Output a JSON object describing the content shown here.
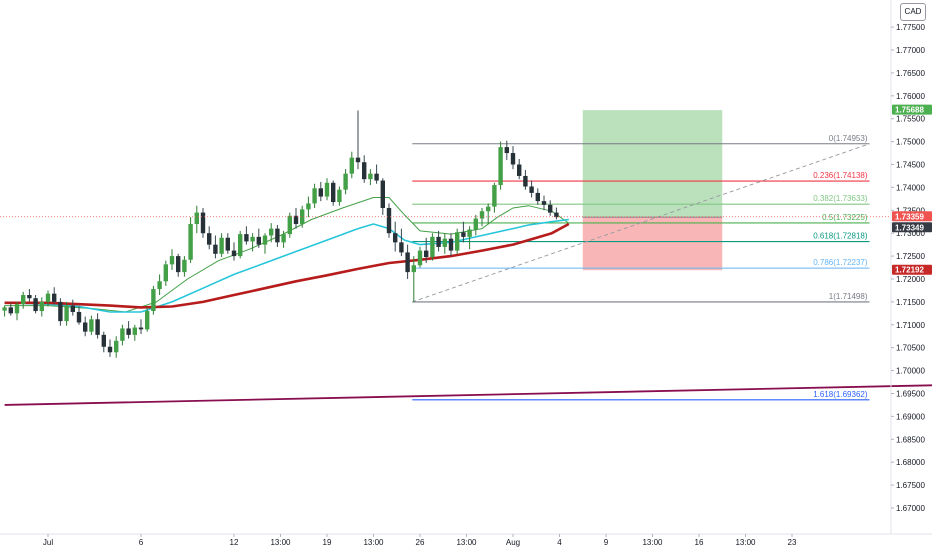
{
  "currency": "CAD",
  "price_tags": [
    {
      "label": "1.75688",
      "value": 1.75688,
      "color": "#4caf50"
    },
    {
      "label": "1.73359",
      "value": 1.73359,
      "color": "#ef5350"
    },
    {
      "label": "1.73349",
      "value": 1.73349,
      "color": "#363a45"
    },
    {
      "label": "1.72192",
      "value": 1.72192,
      "color": "#c62828"
    }
  ],
  "chart_data": {
    "type": "candlestick",
    "y_ticks": [
      "1.67000",
      "1.67500",
      "1.68000",
      "1.68500",
      "1.69000",
      "1.69500",
      "1.70000",
      "1.70500",
      "1.71000",
      "1.71500",
      "1.72000",
      "1.72500",
      "1.73000",
      "1.73500",
      "1.74000",
      "1.74500",
      "1.75000",
      "1.75500",
      "1.76000",
      "1.76500",
      "1.77000",
      "1.77500"
    ],
    "ylim": [
      1.6665,
      1.7783
    ],
    "x_ticks": [
      {
        "label": "Jul",
        "t": 0
      },
      {
        "label": "6",
        "t": 6
      },
      {
        "label": "12",
        "t": 12
      },
      {
        "label": "13:00",
        "t": 15
      },
      {
        "label": "19",
        "t": 18
      },
      {
        "label": "13:00",
        "t": 21
      },
      {
        "label": "26",
        "t": 24
      },
      {
        "label": "13:00",
        "t": 27
      },
      {
        "label": "Aug",
        "t": 30
      },
      {
        "label": "4",
        "t": 33
      },
      {
        "label": "9",
        "t": 36
      },
      {
        "label": "13:00",
        "t": 39
      },
      {
        "label": "16",
        "t": 42
      },
      {
        "label": "13:00",
        "t": 45
      },
      {
        "label": "23",
        "t": 48
      }
    ],
    "candles": [
      [
        -2.8,
        1.7131,
        1.7142,
        1.7118,
        1.7138
      ],
      [
        -2.4,
        1.7138,
        1.7148,
        1.712,
        1.7125
      ],
      [
        -2.0,
        1.7125,
        1.715,
        1.711,
        1.7145
      ],
      [
        -1.6,
        1.7145,
        1.7172,
        1.7135,
        1.7165
      ],
      [
        -1.2,
        1.7165,
        1.7178,
        1.715,
        1.7158
      ],
      [
        -0.8,
        1.7158,
        1.7165,
        1.7125,
        1.713
      ],
      [
        -0.4,
        1.713,
        1.716,
        1.7118,
        1.715
      ],
      [
        0.0,
        1.715,
        1.7175,
        1.714,
        1.7168
      ],
      [
        0.4,
        1.7168,
        1.7182,
        1.7145,
        1.715
      ],
      [
        0.8,
        1.715,
        1.7158,
        1.7098,
        1.7108
      ],
      [
        1.2,
        1.7108,
        1.715,
        1.7098,
        1.7142
      ],
      [
        1.6,
        1.7142,
        1.7155,
        1.712,
        1.7128
      ],
      [
        2.0,
        1.7128,
        1.714,
        1.71,
        1.7105
      ],
      [
        2.4,
        1.7105,
        1.7118,
        1.7075,
        1.7085
      ],
      [
        2.8,
        1.7085,
        1.712,
        1.7078,
        1.7112
      ],
      [
        3.2,
        1.7112,
        1.7125,
        1.707,
        1.7078
      ],
      [
        3.6,
        1.7078,
        1.7085,
        1.704,
        1.7052
      ],
      [
        4.0,
        1.7052,
        1.7068,
        1.703,
        1.704
      ],
      [
        4.4,
        1.704,
        1.7075,
        1.7028,
        1.7065
      ],
      [
        4.8,
        1.7065,
        1.71,
        1.7055,
        1.7092
      ],
      [
        5.2,
        1.7092,
        1.7108,
        1.707,
        1.7078
      ],
      [
        5.6,
        1.7078,
        1.71,
        1.7065,
        1.7094
      ],
      [
        6.0,
        1.7094,
        1.7112,
        1.708,
        1.709
      ],
      [
        6.4,
        1.709,
        1.7138,
        1.7085,
        1.713
      ],
      [
        6.8,
        1.713,
        1.7185,
        1.7122,
        1.7178
      ],
      [
        7.2,
        1.7178,
        1.721,
        1.7165,
        1.7195
      ],
      [
        7.6,
        1.7195,
        1.724,
        1.7185,
        1.7232
      ],
      [
        8.0,
        1.7232,
        1.7265,
        1.722,
        1.725
      ],
      [
        8.4,
        1.725,
        1.7255,
        1.7205,
        1.7215
      ],
      [
        8.8,
        1.7215,
        1.725,
        1.7205,
        1.7242
      ],
      [
        9.2,
        1.7242,
        1.7335,
        1.7235,
        1.732
      ],
      [
        9.6,
        1.732,
        1.736,
        1.73,
        1.7345
      ],
      [
        10.0,
        1.7345,
        1.7355,
        1.729,
        1.73
      ],
      [
        10.4,
        1.73,
        1.7315,
        1.7265,
        1.7275
      ],
      [
        10.8,
        1.7275,
        1.7295,
        1.7245,
        1.7255
      ],
      [
        11.2,
        1.7255,
        1.73,
        1.7248,
        1.729
      ],
      [
        11.6,
        1.729,
        1.73,
        1.7255,
        1.7262
      ],
      [
        12.0,
        1.7262,
        1.728,
        1.724,
        1.725
      ],
      [
        12.4,
        1.725,
        1.7305,
        1.7245,
        1.7298
      ],
      [
        12.8,
        1.7298,
        1.7315,
        1.7275,
        1.7282
      ],
      [
        13.2,
        1.7282,
        1.73,
        1.726,
        1.7292
      ],
      [
        13.6,
        1.7292,
        1.731,
        1.7268,
        1.7275
      ],
      [
        14.0,
        1.7275,
        1.73,
        1.7255,
        1.7295
      ],
      [
        14.4,
        1.7295,
        1.7322,
        1.728,
        1.731
      ],
      [
        14.8,
        1.731,
        1.7318,
        1.727,
        1.728
      ],
      [
        15.2,
        1.728,
        1.7305,
        1.7268,
        1.7298
      ],
      [
        15.6,
        1.7298,
        1.7345,
        1.729,
        1.7338
      ],
      [
        16.0,
        1.7338,
        1.7355,
        1.731,
        1.732
      ],
      [
        16.4,
        1.732,
        1.736,
        1.7312,
        1.7352
      ],
      [
        16.8,
        1.7352,
        1.738,
        1.7335,
        1.7365
      ],
      [
        17.2,
        1.7365,
        1.7408,
        1.7355,
        1.7398
      ],
      [
        17.6,
        1.7398,
        1.7412,
        1.737,
        1.738
      ],
      [
        18.0,
        1.738,
        1.742,
        1.7372,
        1.741
      ],
      [
        18.4,
        1.741,
        1.7415,
        1.736,
        1.7368
      ],
      [
        18.8,
        1.7368,
        1.7402,
        1.736,
        1.7395
      ],
      [
        19.2,
        1.7395,
        1.744,
        1.7385,
        1.743
      ],
      [
        19.6,
        1.743,
        1.7478,
        1.742,
        1.7465
      ],
      [
        20.0,
        1.7465,
        1.7568,
        1.744,
        1.7455
      ],
      [
        20.4,
        1.7455,
        1.747,
        1.741,
        1.7418
      ],
      [
        20.8,
        1.7418,
        1.744,
        1.7405,
        1.743
      ],
      [
        21.2,
        1.743,
        1.745,
        1.7408,
        1.7415
      ],
      [
        21.6,
        1.7415,
        1.742,
        1.734,
        1.7355
      ],
      [
        22.0,
        1.7355,
        1.7365,
        1.729,
        1.73
      ],
      [
        22.4,
        1.73,
        1.7325,
        1.726,
        1.728
      ],
      [
        22.8,
        1.728,
        1.731,
        1.725,
        1.7258
      ],
      [
        23.2,
        1.7258,
        1.7275,
        1.72,
        1.7215
      ],
      [
        23.6,
        1.7215,
        1.725,
        1.715,
        1.723
      ],
      [
        24.0,
        1.723,
        1.727,
        1.7225,
        1.7262
      ],
      [
        24.4,
        1.7262,
        1.729,
        1.7235,
        1.7248
      ],
      [
        24.8,
        1.7248,
        1.73,
        1.724,
        1.7292
      ],
      [
        25.2,
        1.7292,
        1.7305,
        1.726,
        1.727
      ],
      [
        25.6,
        1.727,
        1.73,
        1.7255,
        1.7288
      ],
      [
        26.0,
        1.7288,
        1.73,
        1.725,
        1.7262
      ],
      [
        26.4,
        1.7262,
        1.731,
        1.7255,
        1.7302
      ],
      [
        26.8,
        1.7302,
        1.7325,
        1.728,
        1.7292
      ],
      [
        27.2,
        1.7292,
        1.7315,
        1.7265,
        1.7308
      ],
      [
        27.6,
        1.7308,
        1.734,
        1.7295,
        1.7332
      ],
      [
        28.0,
        1.7332,
        1.7355,
        1.7315,
        1.7348
      ],
      [
        28.4,
        1.7348,
        1.7365,
        1.732,
        1.7358
      ],
      [
        28.8,
        1.7358,
        1.741,
        1.7345,
        1.7405
      ],
      [
        29.2,
        1.7405,
        1.75,
        1.7395,
        1.7488
      ],
      [
        29.6,
        1.7488,
        1.7502,
        1.746,
        1.7475
      ],
      [
        30.0,
        1.7475,
        1.749,
        1.744,
        1.745
      ],
      [
        30.4,
        1.745,
        1.7462,
        1.7418,
        1.7425
      ],
      [
        30.8,
        1.7425,
        1.7438,
        1.7395,
        1.7402
      ],
      [
        31.2,
        1.7402,
        1.7415,
        1.7378,
        1.7388
      ],
      [
        31.6,
        1.7388,
        1.7398,
        1.7362,
        1.737
      ],
      [
        32.0,
        1.737,
        1.7382,
        1.735,
        1.7362
      ],
      [
        32.4,
        1.7362,
        1.7372,
        1.7338,
        1.7345
      ],
      [
        32.8,
        1.7345,
        1.7356,
        1.733,
        1.7335
      ]
    ],
    "ma_series": [
      {
        "color": "#43a047",
        "width": 1,
        "points": [
          [
            -2.8,
            1.7142
          ],
          [
            0,
            1.7142
          ],
          [
            3,
            1.7135
          ],
          [
            5,
            1.7128
          ],
          [
            7,
            1.715
          ],
          [
            9,
            1.72
          ],
          [
            11,
            1.724
          ],
          [
            13,
            1.7265
          ],
          [
            15,
            1.7295
          ],
          [
            17,
            1.733
          ],
          [
            19,
            1.7355
          ],
          [
            21,
            1.7378
          ],
          [
            22,
            1.7378
          ],
          [
            23,
            1.734
          ],
          [
            24,
            1.7305
          ],
          [
            26,
            1.7298
          ],
          [
            28,
            1.731
          ],
          [
            29,
            1.7335
          ],
          [
            30,
            1.7355
          ],
          [
            31,
            1.736
          ],
          [
            32.5,
            1.7348
          ],
          [
            33.6,
            1.7322
          ]
        ]
      },
      {
        "color": "#26c6da",
        "width": 1.6,
        "points": [
          [
            -2.8,
            1.7148
          ],
          [
            0,
            1.7145
          ],
          [
            2,
            1.714
          ],
          [
            4,
            1.7128
          ],
          [
            6,
            1.7128
          ],
          [
            8,
            1.715
          ],
          [
            10,
            1.718
          ],
          [
            12,
            1.721
          ],
          [
            14,
            1.7235
          ],
          [
            16,
            1.726
          ],
          [
            18,
            1.7285
          ],
          [
            20,
            1.731
          ],
          [
            21,
            1.732
          ],
          [
            22,
            1.731
          ],
          [
            23,
            1.7285
          ],
          [
            24,
            1.7275
          ],
          [
            26,
            1.728
          ],
          [
            28,
            1.7295
          ],
          [
            30,
            1.731
          ],
          [
            31,
            1.7318
          ],
          [
            32.5,
            1.7325
          ],
          [
            33.6,
            1.733
          ]
        ]
      },
      {
        "color": "#b71c1c",
        "width": 2.6,
        "points": [
          [
            -2.8,
            1.7148
          ],
          [
            0,
            1.7148
          ],
          [
            2,
            1.7145
          ],
          [
            4,
            1.7142
          ],
          [
            6,
            1.7138
          ],
          [
            8,
            1.714
          ],
          [
            10,
            1.715
          ],
          [
            12,
            1.7165
          ],
          [
            14,
            1.718
          ],
          [
            16,
            1.7195
          ],
          [
            18,
            1.7208
          ],
          [
            20,
            1.7222
          ],
          [
            22,
            1.7235
          ],
          [
            24,
            1.7242
          ],
          [
            26,
            1.725
          ],
          [
            28,
            1.7262
          ],
          [
            30,
            1.7275
          ],
          [
            31,
            1.7285
          ],
          [
            32.5,
            1.73
          ],
          [
            33.6,
            1.732
          ]
        ]
      }
    ],
    "trendline": {
      "color": "#880e4f",
      "start": [
        -2.8,
        1.6925
      ],
      "end": [
        60,
        1.697
      ]
    },
    "fib_levels": [
      {
        "label": "0(1.74953)",
        "value": 1.74953,
        "color": "#787b86"
      },
      {
        "label": "0.236(1.74138)",
        "value": 1.74138,
        "color": "#f23645"
      },
      {
        "label": "0.382(1.73633)",
        "value": 1.73633,
        "color": "#81c784"
      },
      {
        "label": "0.5(1.73225)",
        "value": 1.73225,
        "color": "#4caf50"
      },
      {
        "label": "0.618(1.72818)",
        "value": 1.72818,
        "color": "#089981"
      },
      {
        "label": "0.786(1.72237)",
        "value": 1.72237,
        "color": "#64b5f6"
      },
      {
        "label": "1(1.71498)",
        "value": 1.71498,
        "color": "#787b86"
      },
      {
        "label": "1.618(1.69362)",
        "value": 1.69362,
        "color": "#2962ff"
      }
    ],
    "fib_x_range": [
      23.5,
      53
    ],
    "fib_extension_x_start": 23.5,
    "fib_diagonal": {
      "start": [
        23.5,
        1.71498
      ],
      "end": [
        53,
        1.74953
      ]
    },
    "position": {
      "t_start": 34.5,
      "t_end": 43.5,
      "entry": 1.73349,
      "target": 1.75688,
      "stop": 1.72192
    }
  }
}
